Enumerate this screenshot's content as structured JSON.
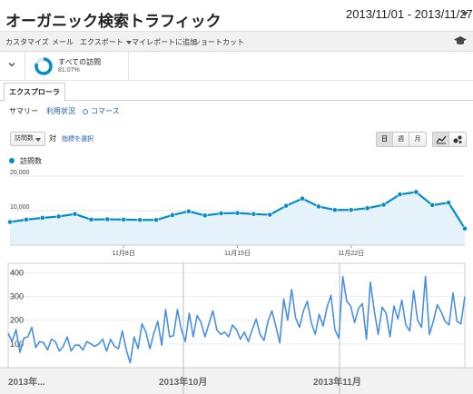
{
  "header": {
    "title": "オーガニック検索トラフィック",
    "date_range": "2013/11/01 - 2013/11/27"
  },
  "toolbar": {
    "items": [
      "カスタマイズ",
      "メール",
      "エクスポート",
      "マイレポートに追加",
      "ショートカット"
    ],
    "cap_icon": "graduation-cap-icon"
  },
  "segment": {
    "name": "すべての訪問",
    "percent": "81.07%",
    "percent_value": 81.07,
    "donut_color": "#058dc7"
  },
  "tabs": {
    "explorer": "エクスプローラ"
  },
  "subnav": {
    "summary": "サマリー",
    "usage": "利用状況",
    "ecommerce": "コマース"
  },
  "controls": {
    "metric": "訪問数",
    "vs": "対",
    "choose_metric": "指標を選択",
    "periods": [
      "日",
      "週",
      "月"
    ],
    "active_period": "日"
  },
  "legend": {
    "label": "訪問数",
    "color": "#058dc7"
  },
  "chart_data": [
    {
      "type": "area",
      "series": [
        {
          "name": "訪問数",
          "values": [
            6700,
            7400,
            7900,
            8300,
            9000,
            7400,
            7500,
            7400,
            7300,
            7300,
            8700,
            9800,
            8600,
            9200,
            9300,
            9000,
            8800,
            11400,
            13500,
            11200,
            10200,
            10200,
            10700,
            11700,
            14700,
            15400,
            11600,
            12300,
            4800
          ]
        }
      ],
      "x_tick_labels": [
        "11月8日",
        "11月15日",
        "11月22日"
      ],
      "x_tick_indices": [
        7,
        14,
        21
      ],
      "y_tick_labels": [
        "20,000",
        "10,000"
      ],
      "y_ticks": [
        20000,
        10000
      ],
      "ylim": [
        0,
        20000
      ],
      "color": "#058dc7"
    },
    {
      "type": "line",
      "series": [
        {
          "values": [
            145,
            110,
            160,
            65,
            125,
            130,
            170,
            85,
            110,
            105,
            75,
            120,
            110,
            70,
            90,
            130,
            70,
            95,
            95,
            75,
            110,
            100,
            90,
            100,
            120,
            70,
            120,
            90,
            80,
            155,
            75,
            20,
            130,
            80,
            185,
            150,
            80,
            145,
            195,
            95,
            245,
            130,
            135,
            245,
            160,
            110,
            230,
            130,
            220,
            190,
            130,
            185,
            240,
            160,
            140,
            150,
            130,
            180,
            160,
            120,
            150,
            110,
            160,
            205,
            140,
            115,
            195,
            240,
            175,
            105,
            290,
            200,
            330,
            210,
            170,
            240,
            280,
            190,
            140,
            225,
            175,
            255,
            305,
            160,
            125,
            385,
            280,
            260,
            190,
            250,
            270,
            120,
            360,
            240,
            140,
            255,
            230,
            130,
            260,
            205,
            285,
            180,
            155,
            325,
            200,
            170,
            385,
            140,
            195,
            265,
            235,
            195,
            180,
            315,
            195,
            185,
            300
          ]
        }
      ],
      "x_tick_labels": [
        "2013年...",
        "2013年10月",
        "2013年11月"
      ],
      "y_tick_labels": [
        "400",
        "300",
        "200",
        "100"
      ],
      "y_ticks": [
        400,
        300,
        200,
        100
      ],
      "ylim": [
        0,
        440
      ],
      "color": "#4a90e2"
    }
  ]
}
